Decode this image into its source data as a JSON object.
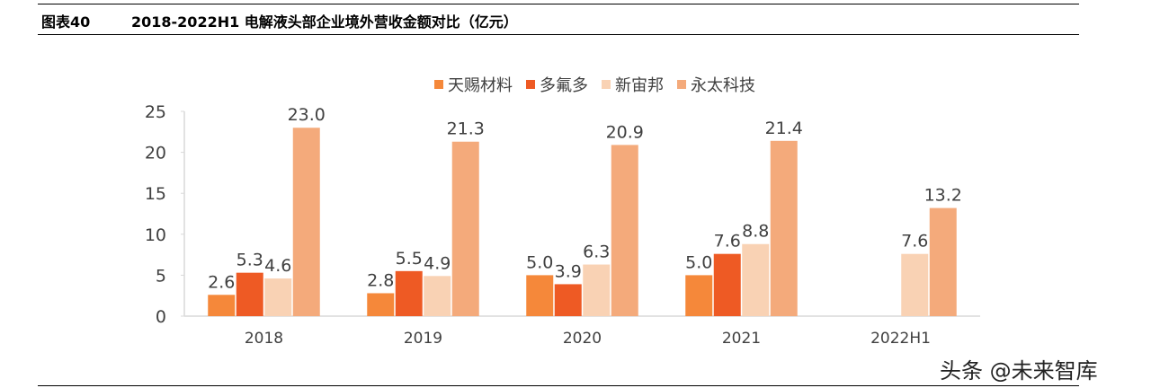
{
  "header": {
    "figure_no": "图表40",
    "title": "2018-2022H1 电解液头部企业境外营收金额对比（亿元）"
  },
  "watermark": "头条 @未来智库",
  "chart_data": {
    "type": "bar",
    "title": "",
    "xlabel": "",
    "ylabel": "",
    "categories": [
      "2018",
      "2019",
      "2020",
      "2021",
      "2022H1"
    ],
    "ylim": [
      0,
      25
    ],
    "yticks": [
      0,
      5,
      10,
      15,
      20,
      25
    ],
    "grid": false,
    "legend_position": "top-right",
    "series": [
      {
        "name": "天赐材料",
        "color": "#F5883A",
        "values": [
          2.6,
          2.8,
          5.0,
          5.0,
          null
        ]
      },
      {
        "name": "多氟多",
        "color": "#EE5A24",
        "values": [
          5.3,
          5.5,
          3.9,
          7.6,
          null
        ]
      },
      {
        "name": "新宙邦",
        "color": "#F9D2B4",
        "values": [
          4.6,
          4.9,
          6.3,
          8.8,
          7.6
        ]
      },
      {
        "name": "永太科技",
        "color": "#F4AA7B",
        "values": [
          23.0,
          21.3,
          20.9,
          21.4,
          13.2
        ]
      }
    ]
  }
}
